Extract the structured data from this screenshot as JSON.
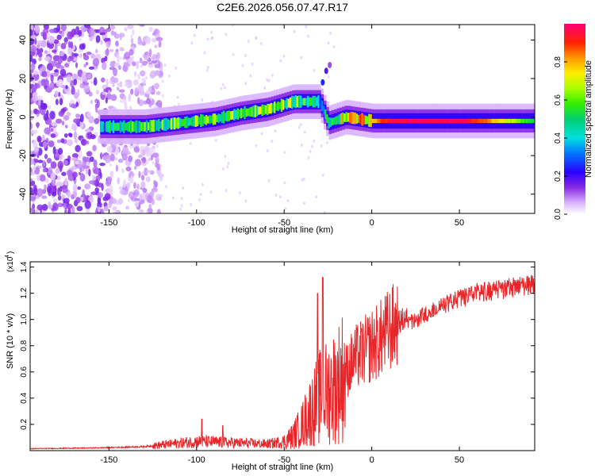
{
  "figure_title": "C2E6.2026.056.07.47.R17",
  "colors": {
    "snr_line": "#e8262a",
    "axis": "#000000",
    "background": "#ffffff"
  },
  "chart_data": [
    {
      "type": "heatmap",
      "name": "spectrogram",
      "title": "C2E6.2026.056.07.47.R17",
      "xlabel": "Height of straight line (km)",
      "ylabel": "Frequency (Hz)",
      "xlim": [
        -195,
        93
      ],
      "ylim": [
        -50,
        48
      ],
      "xticks": [
        -150,
        -100,
        -50,
        0,
        50
      ],
      "yticks": [
        -40,
        -20,
        0,
        20,
        40
      ],
      "colorbar": {
        "label": "Normalized spectral amplitude",
        "range": [
          0,
          1
        ],
        "ticks": [
          0.0,
          0.2,
          0.4,
          0.6,
          0.8
        ],
        "tick_labels": [
          "0.0",
          "0.2",
          "0.4",
          "0.6",
          "0.8"
        ]
      },
      "ridge": [
        {
          "x": -150,
          "f": -5,
          "amp": 0.45
        },
        {
          "x": -130,
          "f": -5,
          "amp": 0.5
        },
        {
          "x": -110,
          "f": -3,
          "amp": 0.55
        },
        {
          "x": -90,
          "f": -1,
          "amp": 0.55
        },
        {
          "x": -75,
          "f": 2,
          "amp": 0.55
        },
        {
          "x": -60,
          "f": 4,
          "amp": 0.6
        },
        {
          "x": -45,
          "f": 8,
          "amp": 0.6
        },
        {
          "x": -30,
          "f": 8,
          "amp": 0.4
        },
        {
          "x": -25,
          "f": -3,
          "amp": 0.4
        },
        {
          "x": -15,
          "f": 0,
          "amp": 0.75
        },
        {
          "x": 0,
          "f": -2,
          "amp": 0.8
        },
        {
          "x": 10,
          "f": -2,
          "amp": 0.95
        },
        {
          "x": 50,
          "f": -2,
          "amp": 1.0
        },
        {
          "x": 90,
          "f": -2,
          "amp": 0.55
        }
      ]
    },
    {
      "type": "line",
      "name": "snr",
      "xlabel": "Height of straight line (km)",
      "ylabel": "SNR (10 * v/v)",
      "yscale_label": "(x10",
      "yscale_exp": "4",
      "xlim": [
        -195,
        93
      ],
      "ylim": [
        0,
        14400
      ],
      "xticks": [
        -150,
        -100,
        -50,
        0,
        50
      ],
      "yticks": [
        0.2,
        0.4,
        0.6,
        0.8,
        1.0,
        1.2,
        1.4
      ],
      "ytick_labels": [
        "0.2",
        "0.4",
        "0.6",
        "0.8",
        "1.0",
        "1.2",
        "1.4"
      ],
      "trend": {
        "x": [
          -195,
          -160,
          -130,
          -115,
          -100,
          -80,
          -70,
          -60,
          -50,
          -45,
          -40,
          -35,
          -30,
          -25,
          -20,
          -15,
          -10,
          -5,
          0,
          5,
          10,
          20,
          30,
          40,
          50,
          60,
          70,
          80,
          93
        ],
        "y": [
          150,
          200,
          300,
          500,
          700,
          600,
          550,
          500,
          700,
          1100,
          1900,
          3000,
          4000,
          4500,
          5000,
          6000,
          7000,
          7500,
          8000,
          8500,
          9200,
          10200,
          11000,
          11800,
          12300,
          12800,
          13000,
          13200,
          13500
        ]
      },
      "spikes": [
        {
          "x": -28,
          "y": 13200
        },
        {
          "x": -31,
          "y": 12000
        },
        {
          "x": -97,
          "y": 2400
        },
        {
          "x": -85,
          "y": 1900
        }
      ]
    }
  ]
}
